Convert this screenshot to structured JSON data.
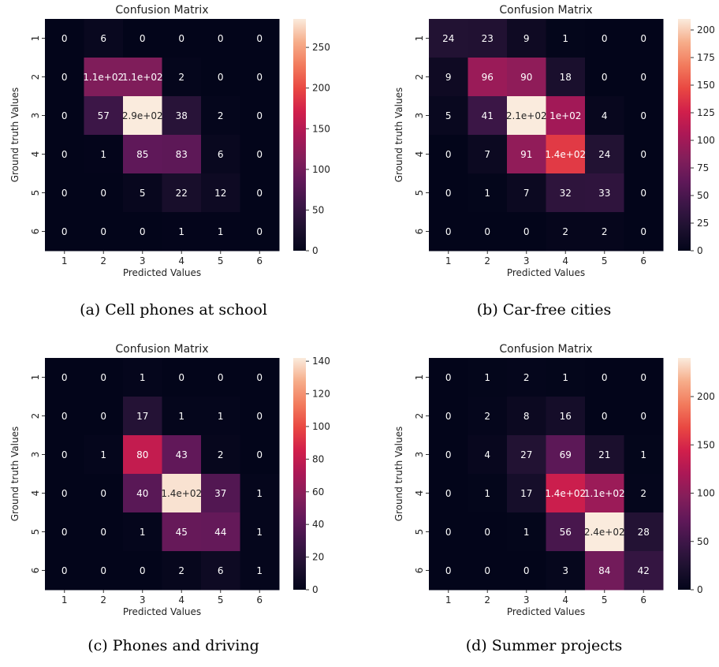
{
  "chart_data": [
    {
      "type": "heatmap",
      "title": "Confusion Matrix",
      "caption": "(a) Cell phones at school",
      "xlabel": "Predicted Values",
      "ylabel": "Ground truth Values",
      "x_ticks": [
        "1",
        "2",
        "3",
        "4",
        "5",
        "6"
      ],
      "y_ticks": [
        "1",
        "2",
        "3",
        "4",
        "5",
        "6"
      ],
      "values": [
        [
          0,
          6,
          0,
          0,
          0,
          0
        ],
        [
          0,
          110,
          110,
          2,
          0,
          0
        ],
        [
          0,
          57,
          290,
          38,
          2,
          0
        ],
        [
          0,
          1,
          85,
          83,
          6,
          0
        ],
        [
          0,
          0,
          5,
          22,
          12,
          0
        ],
        [
          0,
          0,
          0,
          1,
          1,
          0
        ]
      ],
      "cell_labels": [
        [
          "0",
          "6",
          "0",
          "0",
          "0",
          "0"
        ],
        [
          "0",
          "1.1e+02",
          "1.1e+02",
          "2",
          "0",
          "0"
        ],
        [
          "0",
          "57",
          "2.9e+02",
          "38",
          "2",
          "0"
        ],
        [
          "0",
          "1",
          "85",
          "83",
          "6",
          "0"
        ],
        [
          "0",
          "0",
          "5",
          "22",
          "12",
          "0"
        ],
        [
          "0",
          "0",
          "0",
          "1",
          "1",
          "0"
        ]
      ],
      "colorbar_range": [
        0,
        285
      ],
      "colorbar_ticks": [
        "0",
        "50",
        "100",
        "150",
        "200",
        "250"
      ],
      "colorbar_tick_values": [
        0,
        50,
        100,
        150,
        200,
        250
      ]
    },
    {
      "type": "heatmap",
      "title": "Confusion Matrix",
      "caption": "(b) Car-free cities",
      "xlabel": "Predicted Values",
      "ylabel": "Ground truth Values",
      "x_ticks": [
        "1",
        "2",
        "3",
        "4",
        "5",
        "6"
      ],
      "y_ticks": [
        "1",
        "2",
        "3",
        "4",
        "5",
        "6"
      ],
      "values": [
        [
          24,
          23,
          9,
          1,
          0,
          0
        ],
        [
          9,
          96,
          90,
          18,
          0,
          0
        ],
        [
          5,
          41,
          210,
          100,
          4,
          0
        ],
        [
          0,
          7,
          91,
          140,
          24,
          0
        ],
        [
          0,
          1,
          7,
          32,
          33,
          0
        ],
        [
          0,
          0,
          0,
          2,
          2,
          0
        ]
      ],
      "cell_labels": [
        [
          "24",
          "23",
          "9",
          "1",
          "0",
          "0"
        ],
        [
          "9",
          "96",
          "90",
          "18",
          "0",
          "0"
        ],
        [
          "5",
          "41",
          "2.1e+02",
          "1e+02",
          "4",
          "0"
        ],
        [
          "0",
          "7",
          "91",
          "1.4e+02",
          "24",
          "0"
        ],
        [
          "0",
          "1",
          "7",
          "32",
          "33",
          "0"
        ],
        [
          "0",
          "0",
          "0",
          "2",
          "2",
          "0"
        ]
      ],
      "colorbar_range": [
        0,
        210
      ],
      "colorbar_ticks": [
        "0",
        "25",
        "50",
        "75",
        "100",
        "125",
        "150",
        "175",
        "200"
      ],
      "colorbar_tick_values": [
        0,
        25,
        50,
        75,
        100,
        125,
        150,
        175,
        200
      ]
    },
    {
      "type": "heatmap",
      "title": "Confusion Matrix",
      "caption": "(c) Phones and driving",
      "xlabel": "Predicted Values",
      "ylabel": "Ground truth Values",
      "x_ticks": [
        "1",
        "2",
        "3",
        "4",
        "5",
        "6"
      ],
      "y_ticks": [
        "1",
        "2",
        "3",
        "4",
        "5",
        "6"
      ],
      "values": [
        [
          0,
          0,
          1,
          0,
          0,
          0
        ],
        [
          0,
          0,
          17,
          1,
          1,
          0
        ],
        [
          0,
          1,
          80,
          43,
          2,
          0
        ],
        [
          0,
          0,
          40,
          140,
          37,
          1
        ],
        [
          0,
          0,
          1,
          45,
          44,
          1
        ],
        [
          0,
          0,
          0,
          2,
          6,
          1
        ]
      ],
      "cell_labels": [
        [
          "0",
          "0",
          "1",
          "0",
          "0",
          "0"
        ],
        [
          "0",
          "0",
          "17",
          "1",
          "1",
          "0"
        ],
        [
          "0",
          "1",
          "80",
          "43",
          "2",
          "0"
        ],
        [
          "0",
          "0",
          "40",
          "1.4e+02",
          "37",
          "1"
        ],
        [
          "0",
          "0",
          "1",
          "45",
          "44",
          "1"
        ],
        [
          "0",
          "0",
          "0",
          "2",
          "6",
          "1"
        ]
      ],
      "colorbar_range": [
        0,
        142
      ],
      "colorbar_ticks": [
        "0",
        "20",
        "40",
        "60",
        "80",
        "100",
        "120",
        "140"
      ],
      "colorbar_tick_values": [
        0,
        20,
        40,
        60,
        80,
        100,
        120,
        140
      ]
    },
    {
      "type": "heatmap",
      "title": "Confusion Matrix",
      "caption": "(d) Summer projects",
      "xlabel": "Predicted Values",
      "ylabel": "Ground truth Values",
      "x_ticks": [
        "1",
        "2",
        "3",
        "4",
        "5",
        "6"
      ],
      "y_ticks": [
        "1",
        "2",
        "3",
        "4",
        "5",
        "6"
      ],
      "values": [
        [
          0,
          1,
          2,
          1,
          0,
          0
        ],
        [
          0,
          2,
          8,
          16,
          0,
          0
        ],
        [
          0,
          4,
          27,
          69,
          21,
          1
        ],
        [
          0,
          1,
          17,
          140,
          110,
          2
        ],
        [
          0,
          0,
          1,
          56,
          240,
          28
        ],
        [
          0,
          0,
          0,
          3,
          84,
          42
        ]
      ],
      "cell_labels": [
        [
          "0",
          "1",
          "2",
          "1",
          "0",
          "0"
        ],
        [
          "0",
          "2",
          "8",
          "16",
          "0",
          "0"
        ],
        [
          "0",
          "4",
          "27",
          "69",
          "21",
          "1"
        ],
        [
          "0",
          "1",
          "17",
          "1.4e+02",
          "1.1e+02",
          "2"
        ],
        [
          "0",
          "0",
          "1",
          "56",
          "2.4e+02",
          "28"
        ],
        [
          "0",
          "0",
          "0",
          "3",
          "84",
          "42"
        ]
      ],
      "colorbar_range": [
        0,
        240
      ],
      "colorbar_ticks": [
        "0",
        "50",
        "100",
        "150",
        "200"
      ],
      "colorbar_tick_values": [
        0,
        50,
        100,
        150,
        200
      ]
    }
  ]
}
